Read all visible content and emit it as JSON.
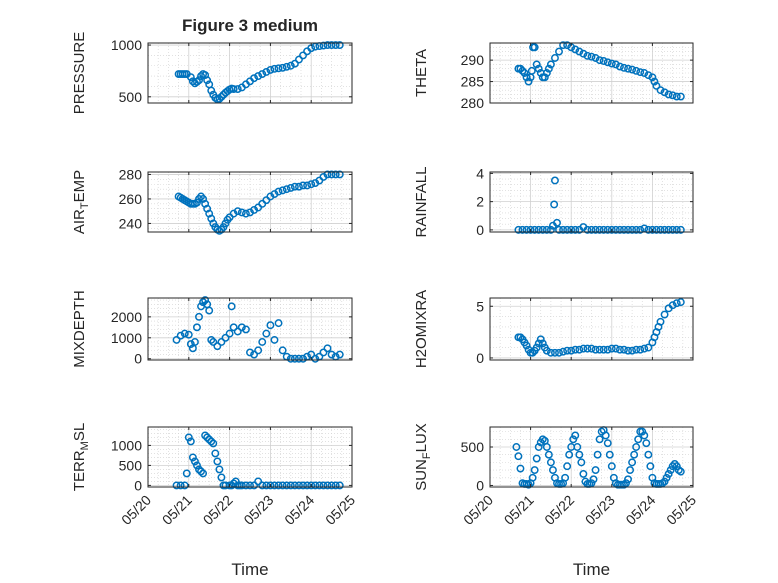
{
  "figure": {
    "title": "Figure 3 medium",
    "x_axis_label": "Time"
  },
  "style": {
    "marker_color": "#0072BD",
    "axis_color": "#262626",
    "grid_color": "#d0d0d0",
    "background": "#ffffff"
  },
  "chart_data": [
    {
      "type": "scatter",
      "name": "PRESSURE",
      "title": "Figure 3 medium",
      "ylabel": "PRESSURE",
      "ylabel_sub": "",
      "ylabel_rest": "",
      "xlabel": "",
      "xlim": [
        0,
        5
      ],
      "ylim": [
        440,
        1020
      ],
      "yticks": [
        500,
        1000
      ],
      "ytick_labels": [
        "500",
        "1000"
      ],
      "xticks": [
        0,
        1,
        2,
        3,
        4,
        5
      ],
      "xtick_labels": [],
      "grid": true,
      "x": [
        0.75,
        0.8,
        0.85,
        0.9,
        0.95,
        1.05,
        1.1,
        1.15,
        1.2,
        1.25,
        1.3,
        1.35,
        1.4,
        1.45,
        1.5,
        1.55,
        1.6,
        1.65,
        1.7,
        1.75,
        1.8,
        1.85,
        1.9,
        1.95,
        2.0,
        2.05,
        2.1,
        2.2,
        2.3,
        2.4,
        2.5,
        2.6,
        2.7,
        2.8,
        2.9,
        3.0,
        3.1,
        3.2,
        3.3,
        3.4,
        3.5,
        3.6,
        3.7,
        3.8,
        3.9,
        4.0,
        4.1,
        4.2,
        4.3,
        4.4,
        4.5,
        4.6,
        4.7
      ],
      "y": [
        720,
        720,
        720,
        720,
        720,
        690,
        650,
        630,
        645,
        660,
        700,
        720,
        710,
        660,
        620,
        560,
        520,
        490,
        475,
        480,
        500,
        520,
        540,
        555,
        570,
        580,
        575,
        575,
        590,
        620,
        650,
        680,
        700,
        720,
        740,
        760,
        770,
        775,
        780,
        790,
        800,
        820,
        860,
        900,
        940,
        970,
        985,
        990,
        995,
        1000,
        1000,
        1000,
        1000
      ]
    },
    {
      "type": "scatter",
      "name": "THETA",
      "ylabel": "THETA",
      "ylabel_sub": "",
      "ylabel_rest": "",
      "xlabel": "",
      "xlim": [
        0,
        5
      ],
      "ylim": [
        280,
        294
      ],
      "yticks": [
        280,
        285,
        290
      ],
      "ytick_labels": [
        "280",
        "285",
        "290"
      ],
      "xticks": [
        0,
        1,
        2,
        3,
        4,
        5
      ],
      "xtick_labels": [],
      "grid": true,
      "x": [
        0.7,
        0.75,
        0.8,
        0.85,
        0.9,
        0.95,
        1.0,
        1.03,
        1.06,
        1.1,
        1.15,
        1.2,
        1.25,
        1.3,
        1.35,
        1.4,
        1.45,
        1.5,
        1.6,
        1.7,
        1.8,
        1.9,
        2.0,
        2.1,
        2.2,
        2.3,
        2.4,
        2.5,
        2.6,
        2.7,
        2.8,
        2.9,
        3.0,
        3.1,
        3.2,
        3.3,
        3.4,
        3.5,
        3.6,
        3.7,
        3.8,
        3.9,
        4.0,
        4.05,
        4.1,
        4.2,
        4.3,
        4.4,
        4.5,
        4.6,
        4.7
      ],
      "y": [
        288,
        288,
        287.5,
        287,
        286,
        285,
        286,
        287.5,
        293,
        293,
        289,
        288,
        287,
        286,
        286,
        287,
        288,
        289,
        290.5,
        292,
        293.5,
        293.5,
        293,
        292.5,
        292,
        291.5,
        291,
        290.8,
        290.5,
        290,
        289.8,
        289.5,
        289.2,
        289,
        288.5,
        288.2,
        288,
        287.8,
        287.5,
        287.2,
        287,
        286.5,
        286,
        285,
        284,
        283,
        282.5,
        282,
        281.8,
        281.5,
        281.5
      ]
    },
    {
      "type": "scatter",
      "name": "AIR_TEMP",
      "ylabel": "AIR",
      "ylabel_sub": "T",
      "ylabel_rest": "EMP",
      "xlabel": "",
      "xlim": [
        0,
        5
      ],
      "ylim": [
        233,
        282
      ],
      "yticks": [
        240,
        260,
        280
      ],
      "ytick_labels": [
        "240",
        "260",
        "280"
      ],
      "xticks": [
        0,
        1,
        2,
        3,
        4,
        5
      ],
      "xtick_labels": [],
      "grid": true,
      "x": [
        0.75,
        0.8,
        0.85,
        0.9,
        0.95,
        1.0,
        1.05,
        1.1,
        1.15,
        1.2,
        1.25,
        1.3,
        1.35,
        1.4,
        1.45,
        1.5,
        1.55,
        1.6,
        1.65,
        1.7,
        1.75,
        1.8,
        1.85,
        1.9,
        1.95,
        2.0,
        2.1,
        2.2,
        2.3,
        2.4,
        2.5,
        2.6,
        2.7,
        2.8,
        2.9,
        3.0,
        3.1,
        3.2,
        3.3,
        3.4,
        3.5,
        3.6,
        3.7,
        3.8,
        3.9,
        4.0,
        4.1,
        4.2,
        4.3,
        4.4,
        4.5,
        4.6,
        4.7
      ],
      "y": [
        262,
        261,
        260,
        259,
        258,
        257,
        256,
        256,
        256,
        257,
        260,
        262,
        260,
        256,
        252,
        248,
        244,
        240,
        237,
        235,
        234,
        235,
        237,
        240,
        243,
        245,
        248,
        250,
        249,
        248,
        249,
        251,
        253,
        256,
        259,
        262,
        264,
        266,
        267,
        268,
        269,
        270,
        270,
        271,
        271,
        272,
        273,
        275,
        278,
        280,
        280,
        280,
        280
      ]
    },
    {
      "type": "scatter",
      "name": "RAINFALL",
      "ylabel": "RAINFALL",
      "ylabel_sub": "",
      "ylabel_rest": "",
      "xlabel": "",
      "xlim": [
        0,
        5
      ],
      "ylim": [
        -0.15,
        4.1
      ],
      "yticks": [
        0,
        2,
        4
      ],
      "ytick_labels": [
        "0",
        "2",
        "4"
      ],
      "xticks": [
        0,
        1,
        2,
        3,
        4,
        5
      ],
      "xtick_labels": [],
      "grid": true,
      "x": [
        0.7,
        0.8,
        0.9,
        1.0,
        1.1,
        1.2,
        1.3,
        1.4,
        1.5,
        1.55,
        1.58,
        1.6,
        1.65,
        1.7,
        1.8,
        1.9,
        2.0,
        2.1,
        2.2,
        2.3,
        2.4,
        2.5,
        2.6,
        2.7,
        2.8,
        2.9,
        3.0,
        3.1,
        3.2,
        3.3,
        3.4,
        3.5,
        3.6,
        3.7,
        3.8,
        3.9,
        4.0,
        4.1,
        4.2,
        4.3,
        4.4,
        4.5,
        4.6,
        4.7
      ],
      "y": [
        0,
        0,
        0,
        0,
        0,
        0,
        0,
        0,
        0,
        0.3,
        1.8,
        3.5,
        0.5,
        0,
        0,
        0,
        0,
        0,
        0,
        0.2,
        0,
        0,
        0,
        0,
        0,
        0,
        0,
        0,
        0,
        0,
        0,
        0,
        0,
        0,
        0.1,
        0,
        0,
        0,
        0,
        0,
        0,
        0,
        0,
        0
      ]
    },
    {
      "type": "scatter",
      "name": "MIXDEPTH",
      "ylabel": "MIXDEPTH",
      "ylabel_sub": "",
      "ylabel_rest": "",
      "xlabel": "",
      "xlim": [
        0,
        5
      ],
      "ylim": [
        -60,
        2900
      ],
      "yticks": [
        0,
        1000,
        2000
      ],
      "ytick_labels": [
        "0",
        "1000",
        "2000"
      ],
      "xticks": [
        0,
        1,
        2,
        3,
        4,
        5
      ],
      "xtick_labels": [],
      "grid": true,
      "x": [
        0.7,
        0.8,
        0.9,
        1.0,
        1.05,
        1.1,
        1.15,
        1.2,
        1.25,
        1.3,
        1.35,
        1.4,
        1.45,
        1.5,
        1.55,
        1.6,
        1.7,
        1.8,
        1.9,
        2.0,
        2.05,
        2.1,
        2.2,
        2.3,
        2.4,
        2.5,
        2.6,
        2.7,
        2.8,
        2.9,
        3.0,
        3.1,
        3.2,
        3.3,
        3.4,
        3.5,
        3.6,
        3.7,
        3.8,
        3.9,
        4.0,
        4.1,
        4.2,
        4.3,
        4.4,
        4.5,
        4.6,
        4.7
      ],
      "y": [
        900,
        1100,
        1200,
        1150,
        700,
        500,
        800,
        1500,
        2000,
        2500,
        2700,
        2800,
        2600,
        2300,
        900,
        800,
        600,
        800,
        1000,
        1200,
        2500,
        1500,
        1300,
        1500,
        1400,
        300,
        200,
        400,
        800,
        1200,
        1600,
        900,
        1700,
        400,
        100,
        0,
        0,
        0,
        0,
        100,
        200,
        0,
        100,
        300,
        500,
        200,
        100,
        200
      ]
    },
    {
      "type": "scatter",
      "name": "H2OMIXRA",
      "ylabel": "H2OMIXRA",
      "ylabel_sub": "",
      "ylabel_rest": "",
      "xlabel": "",
      "xlim": [
        0,
        5
      ],
      "ylim": [
        -0.2,
        5.8
      ],
      "yticks": [
        0,
        5
      ],
      "ytick_labels": [
        "0",
        "5"
      ],
      "xticks": [
        0,
        1,
        2,
        3,
        4,
        5
      ],
      "xtick_labels": [],
      "grid": true,
      "x": [
        0.7,
        0.75,
        0.8,
        0.85,
        0.9,
        0.95,
        1.0,
        1.05,
        1.1,
        1.15,
        1.2,
        1.25,
        1.3,
        1.35,
        1.4,
        1.5,
        1.6,
        1.7,
        1.8,
        1.9,
        2.0,
        2.1,
        2.2,
        2.3,
        2.4,
        2.5,
        2.6,
        2.7,
        2.8,
        2.9,
        3.0,
        3.1,
        3.2,
        3.3,
        3.4,
        3.5,
        3.6,
        3.7,
        3.8,
        3.9,
        4.0,
        4.05,
        4.1,
        4.15,
        4.2,
        4.3,
        4.4,
        4.5,
        4.6,
        4.7
      ],
      "y": [
        2,
        2,
        1.8,
        1.5,
        1.2,
        0.8,
        0.5,
        0.5,
        0.7,
        1.0,
        1.4,
        1.8,
        1.4,
        1.0,
        0.7,
        0.5,
        0.5,
        0.5,
        0.6,
        0.7,
        0.7,
        0.8,
        0.8,
        0.9,
        0.9,
        0.9,
        0.8,
        0.8,
        0.8,
        0.8,
        0.9,
        0.9,
        0.8,
        0.8,
        0.7,
        0.7,
        0.8,
        0.8,
        0.9,
        1.0,
        1.5,
        2.0,
        2.5,
        3.0,
        3.5,
        4.2,
        4.8,
        5.1,
        5.3,
        5.4
      ]
    },
    {
      "type": "scatter",
      "name": "TERR_MSL",
      "ylabel": "TERR",
      "ylabel_sub": "M",
      "ylabel_rest": "SL",
      "xlabel": "",
      "xlim": [
        0,
        5
      ],
      "ylim": [
        -40,
        1460
      ],
      "yticks": [
        0,
        500,
        1000
      ],
      "ytick_labels": [
        "0",
        "500",
        "1000"
      ],
      "xticks": [
        0,
        1,
        2,
        3,
        4,
        5
      ],
      "xtick_labels": [
        "05/20",
        "05/21",
        "05/22",
        "05/23",
        "05/24",
        "05/25"
      ],
      "grid": true,
      "x": [
        0.7,
        0.8,
        0.9,
        0.95,
        1.0,
        1.05,
        1.1,
        1.15,
        1.2,
        1.25,
        1.3,
        1.35,
        1.4,
        1.45,
        1.5,
        1.55,
        1.6,
        1.65,
        1.7,
        1.75,
        1.8,
        1.85,
        1.9,
        2.0,
        2.05,
        2.1,
        2.15,
        2.2,
        2.25,
        2.3,
        2.4,
        2.5,
        2.6,
        2.7,
        2.8,
        2.9,
        3.0,
        3.1,
        3.2,
        3.3,
        3.4,
        3.5,
        3.6,
        3.7,
        3.8,
        3.9,
        4.0,
        4.1,
        4.2,
        4.3,
        4.4,
        4.5,
        4.6,
        4.7
      ],
      "y": [
        0,
        0,
        0,
        300,
        1200,
        1100,
        700,
        600,
        500,
        400,
        350,
        300,
        1250,
        1200,
        1150,
        1100,
        1050,
        800,
        600,
        400,
        200,
        0,
        0,
        0,
        0,
        50,
        100,
        0,
        0,
        0,
        0,
        0,
        0,
        100,
        0,
        0,
        0,
        0,
        0,
        0,
        0,
        0,
        0,
        0,
        0,
        0,
        0,
        0,
        0,
        0,
        0,
        0,
        0,
        0
      ]
    },
    {
      "type": "scatter",
      "name": "SUN_FLUX",
      "ylabel": "SUN",
      "ylabel_sub": "F",
      "ylabel_rest": "LUX",
      "xlabel": "",
      "xlim": [
        0,
        5
      ],
      "ylim": [
        -20,
        760
      ],
      "yticks": [
        0,
        500
      ],
      "ytick_labels": [
        "0",
        "500"
      ],
      "xticks": [
        0,
        1,
        2,
        3,
        4,
        5
      ],
      "xtick_labels": [
        "05/20",
        "05/21",
        "05/22",
        "05/23",
        "05/24",
        "05/25"
      ],
      "grid": true,
      "x": [
        0.65,
        0.7,
        0.75,
        0.8,
        0.85,
        0.9,
        0.95,
        1.0,
        1.05,
        1.1,
        1.15,
        1.2,
        1.25,
        1.3,
        1.35,
        1.4,
        1.45,
        1.5,
        1.55,
        1.6,
        1.65,
        1.7,
        1.75,
        1.8,
        1.85,
        1.9,
        1.95,
        2.0,
        2.05,
        2.1,
        2.15,
        2.2,
        2.25,
        2.3,
        2.35,
        2.4,
        2.45,
        2.5,
        2.55,
        2.6,
        2.65,
        2.7,
        2.75,
        2.8,
        2.85,
        2.9,
        2.95,
        3.0,
        3.05,
        3.1,
        3.15,
        3.2,
        3.25,
        3.3,
        3.35,
        3.4,
        3.45,
        3.5,
        3.55,
        3.6,
        3.65,
        3.7,
        3.75,
        3.8,
        3.85,
        3.9,
        3.95,
        4.0,
        4.05,
        4.1,
        4.15,
        4.2,
        4.25,
        4.3,
        4.35,
        4.4,
        4.45,
        4.5,
        4.55,
        4.6,
        4.65,
        4.7
      ],
      "y": [
        500,
        380,
        220,
        30,
        20,
        20,
        10,
        30,
        100,
        200,
        350,
        500,
        560,
        600,
        580,
        500,
        400,
        300,
        200,
        100,
        30,
        20,
        20,
        30,
        100,
        250,
        400,
        500,
        600,
        650,
        500,
        400,
        300,
        150,
        50,
        20,
        20,
        30,
        80,
        200,
        400,
        600,
        700,
        720,
        650,
        550,
        400,
        250,
        100,
        30,
        10,
        10,
        10,
        10,
        30,
        80,
        200,
        300,
        400,
        500,
        600,
        700,
        700,
        650,
        550,
        400,
        250,
        100,
        30,
        20,
        20,
        20,
        30,
        50,
        100,
        150,
        200,
        250,
        280,
        250,
        200,
        180
      ]
    }
  ]
}
